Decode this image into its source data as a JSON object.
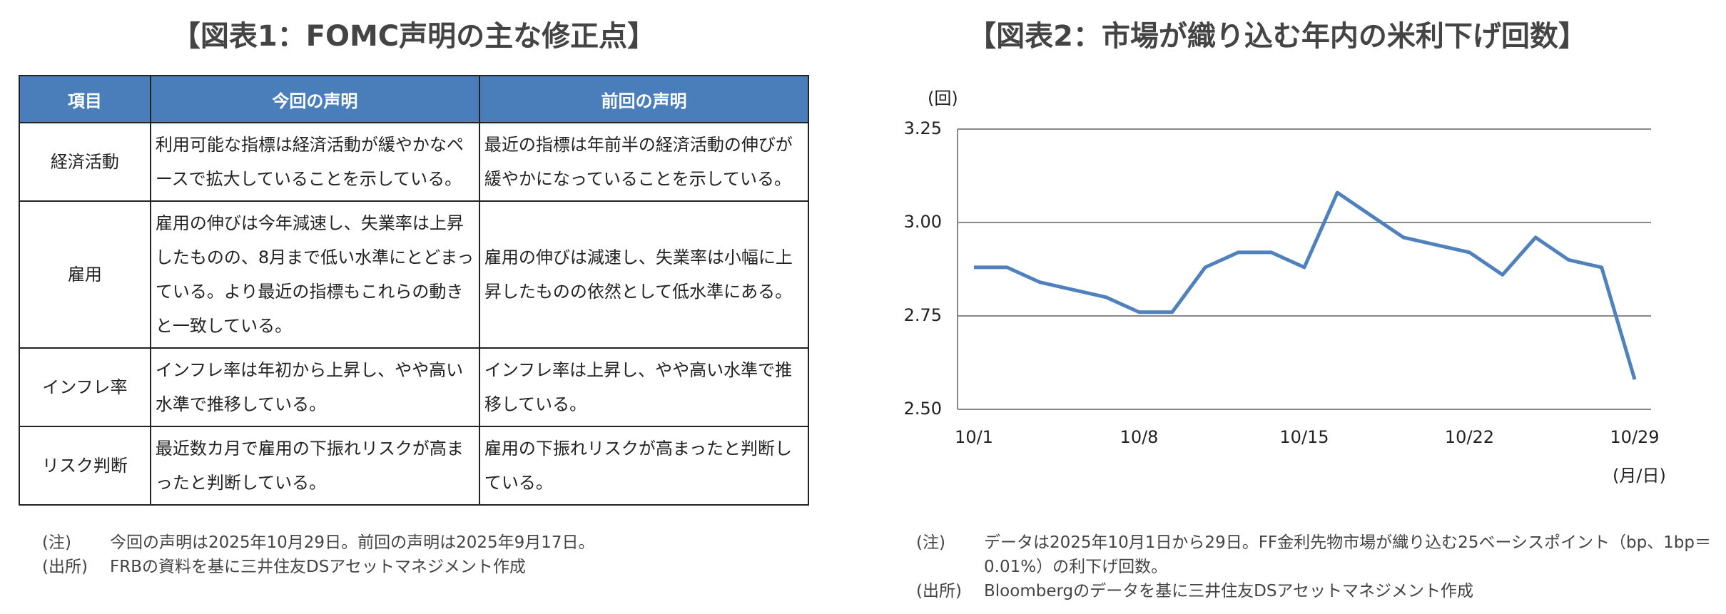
{
  "left": {
    "title": "【図表1：FOMC声明の主な修正点】",
    "table": {
      "header": [
        "項目",
        "今回の声明",
        "前回の声明"
      ],
      "rows": [
        [
          "経済活動",
          "利用可能な指標は経済活動が緩やかなペースで拡大していることを示している。",
          "最近の指標は年前半の経済活動の伸びが緩やかになっていることを示している。"
        ],
        [
          "雇用",
          "雇用の伸びは今年減速し、失業率は上昇したものの、8月まで低い水準にとどまっている。より最近の指標もこれらの動きと一致している。",
          "雇用の伸びは減速し、失業率は小幅に上昇したものの依然として低水準にある。"
        ],
        [
          "インフレ率",
          "インフレ率は年初から上昇し、やや高い水準で推移している。",
          "インフレ率は上昇し、やや高い水準で推移している。"
        ],
        [
          "リスク判断",
          "最近数カ月で雇用の下振れリスクが高まったと判断している。",
          "雇用の下振れリスクが高まったと判断している。"
        ]
      ]
    },
    "notes": [
      {
        "label": "(注)",
        "text": "今回の声明は2025年10月29日。前回の声明は2025年9月17日。"
      },
      {
        "label": "(出所)",
        "text": "FRBの資料を基に三井住友DSアセットマネジメント作成"
      }
    ]
  },
  "chart_data": {
    "type": "line",
    "title": "【図表2：市場が織り込む年内の米利下げ回数】",
    "y_label": "(回)",
    "x_label": "(月/日)",
    "categories": [
      "10/1",
      null,
      null,
      null,
      null,
      "10/8",
      null,
      null,
      null,
      null,
      "10/15",
      null,
      null,
      null,
      null,
      "10/22",
      null,
      null,
      null,
      null,
      "10/29"
    ],
    "series": [
      {
        "name": "利下げ回数",
        "color": "#4f81bd",
        "values": [
          2.88,
          2.88,
          2.84,
          2.82,
          2.8,
          2.76,
          2.76,
          2.88,
          2.92,
          2.92,
          2.88,
          3.08,
          3.02,
          2.96,
          2.94,
          2.92,
          2.86,
          2.96,
          2.9,
          2.88,
          2.58
        ]
      }
    ],
    "ylim": [
      2.5,
      3.25
    ],
    "yticks": [
      {
        "value": 2.5,
        "label": "2.50"
      },
      2.75,
      {
        "value": 3,
        "label": "3.00"
      },
      3.25
    ],
    "grid": true,
    "notes": [
      {
        "label": "(注)",
        "text": "データは2025年10月1日から29日。FF金利先物市場が織り込む25ベーシスポイント（bp、1bp＝0.01%）の利下げ回数。"
      },
      {
        "label": "(出所)",
        "text": "Bloombergのデータを基に三井住友DSアセットマネジメント作成"
      }
    ]
  }
}
